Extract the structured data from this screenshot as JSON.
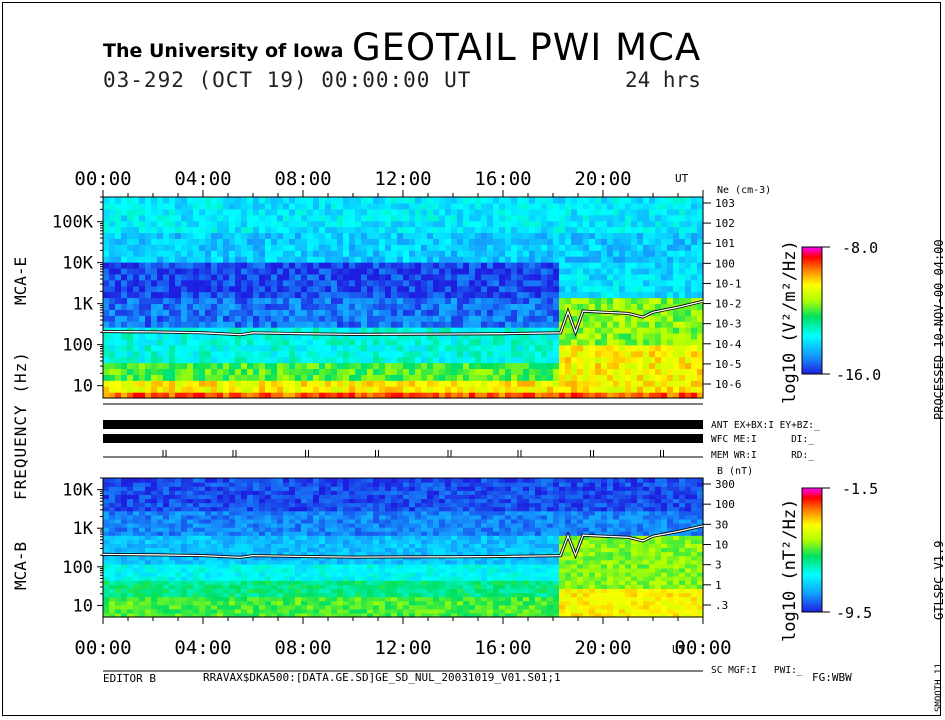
{
  "header": {
    "institution": "The University of Iowa",
    "title": "GEOTAIL PWI MCA",
    "date_line": "03-292 (OCT 19) 00:00:00 UT",
    "duration": "24 hrs"
  },
  "side": {
    "processed": "PROCESSED 10-NOV-00 04:00",
    "version": "GTLSPC V1.9",
    "smooth": "SMOOTH 11"
  },
  "footer": {
    "editor": "EDITOR B",
    "path": "RRAVAX$DKA500:[DATA.GE.SD]GE_SD_NUL_20031019_V01.S01;1",
    "fg": "FG:WBW"
  },
  "axes": {
    "time_ticks": [
      "00:00",
      "04:00",
      "08:00",
      "12:00",
      "16:00",
      "20:00"
    ],
    "time_ticks_bottom": [
      "00:00",
      "04:00",
      "08:00",
      "12:00",
      "16:00",
      "20:00",
      "00:00"
    ],
    "ut_label": "UT",
    "freq_label": "FREQUENCY (Hz)",
    "mca_e_label": "MCA-E",
    "mca_b_label": "MCA-B"
  },
  "status": {
    "ant": "ANT EX+BX:I EY+BZ:_",
    "wfc": "WFC ME:I      DI:_",
    "mem": "MEM WR:I      RD:_",
    "sc": "SC MGF:I   PWI:_"
  },
  "chart_data": [
    {
      "type": "heatmap",
      "name": "MCA-E",
      "xlabel": "UT",
      "ylabel": "FREQUENCY (Hz)",
      "x_range_hours": [
        0,
        24
      ],
      "yscale": "log",
      "ylim": [
        5,
        400000
      ],
      "y_tick_labels": [
        "100K",
        "10K",
        "1K",
        "100",
        "10"
      ],
      "y_tick_values": [
        100000,
        10000,
        1000,
        100,
        10
      ],
      "right_axis_title": "Ne (cm-3)",
      "right_ticks": [
        "10^3",
        "10^2",
        "10^1",
        "10^0",
        "10^-1",
        "10^-2",
        "10^-3",
        "10^-4",
        "10^-5",
        "10^-6"
      ],
      "colorbar": {
        "title": "log10 (V²/m²/Hz)",
        "max_label": "-8.0",
        "min_label": "-16.0",
        "max": -8.0,
        "min": -16.0
      },
      "overlay_line": {
        "name": "plasma frequency trace",
        "x_hours": [
          0,
          2,
          4,
          5.5,
          6,
          8,
          10,
          12,
          14,
          16,
          18.3,
          18.6,
          18.9,
          19.2,
          20,
          21,
          21.6,
          22,
          23,
          24
        ],
        "y_hz": [
          210,
          205,
          195,
          175,
          195,
          185,
          178,
          180,
          182,
          185,
          195,
          640,
          200,
          660,
          620,
          580,
          470,
          620,
          820,
          1150
        ]
      }
    },
    {
      "type": "heatmap",
      "name": "MCA-B",
      "xlabel": "UT",
      "x_range_hours": [
        0,
        24
      ],
      "yscale": "log",
      "ylim": [
        5,
        20000
      ],
      "y_tick_labels": [
        "10K",
        "1K",
        "100",
        "10"
      ],
      "y_tick_values": [
        10000,
        1000,
        100,
        10
      ],
      "right_axis_title": "B (nT)",
      "right_ticks": [
        "300",
        "100",
        "30",
        "10",
        "3",
        "1",
        ".3"
      ],
      "colorbar": {
        "title": "log10 (nT²/Hz)",
        "max_label": "-1.5",
        "min_label": "-9.5",
        "max": -1.5,
        "min": -9.5
      },
      "overlay_line": {
        "name": "electron cyclotron frequency trace",
        "x_hours": [
          0,
          2,
          4,
          5.5,
          6,
          8,
          10,
          12,
          14,
          16,
          18.3,
          18.6,
          18.9,
          19.2,
          20,
          21,
          21.6,
          22,
          23,
          24
        ],
        "y_hz": [
          210,
          205,
          195,
          175,
          195,
          185,
          178,
          180,
          182,
          185,
          195,
          640,
          200,
          660,
          620,
          580,
          470,
          620,
          820,
          1150
        ]
      }
    }
  ],
  "colors": {
    "background": "#ffffff",
    "ink": "#000000",
    "trace": "#ffffff"
  }
}
